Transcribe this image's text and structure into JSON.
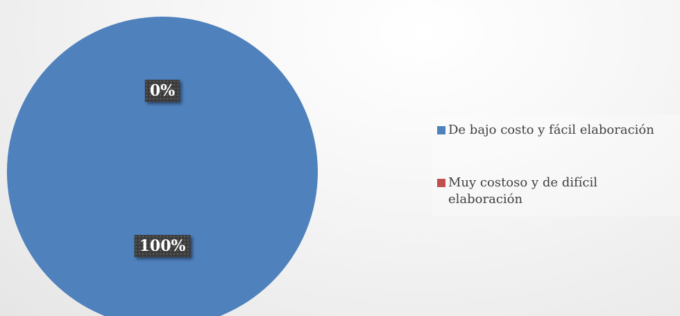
{
  "chart_data": {
    "type": "pie",
    "title": "",
    "slices": [
      {
        "label": "De bajo costo y fácil elaboración",
        "value": 100,
        "display": "100%",
        "color": "#4f81bd"
      },
      {
        "label": "Muy costoso y de difícil elaboración",
        "value": 0,
        "display": "0%",
        "color": "#c0504d"
      }
    ],
    "legend_position": "right"
  }
}
